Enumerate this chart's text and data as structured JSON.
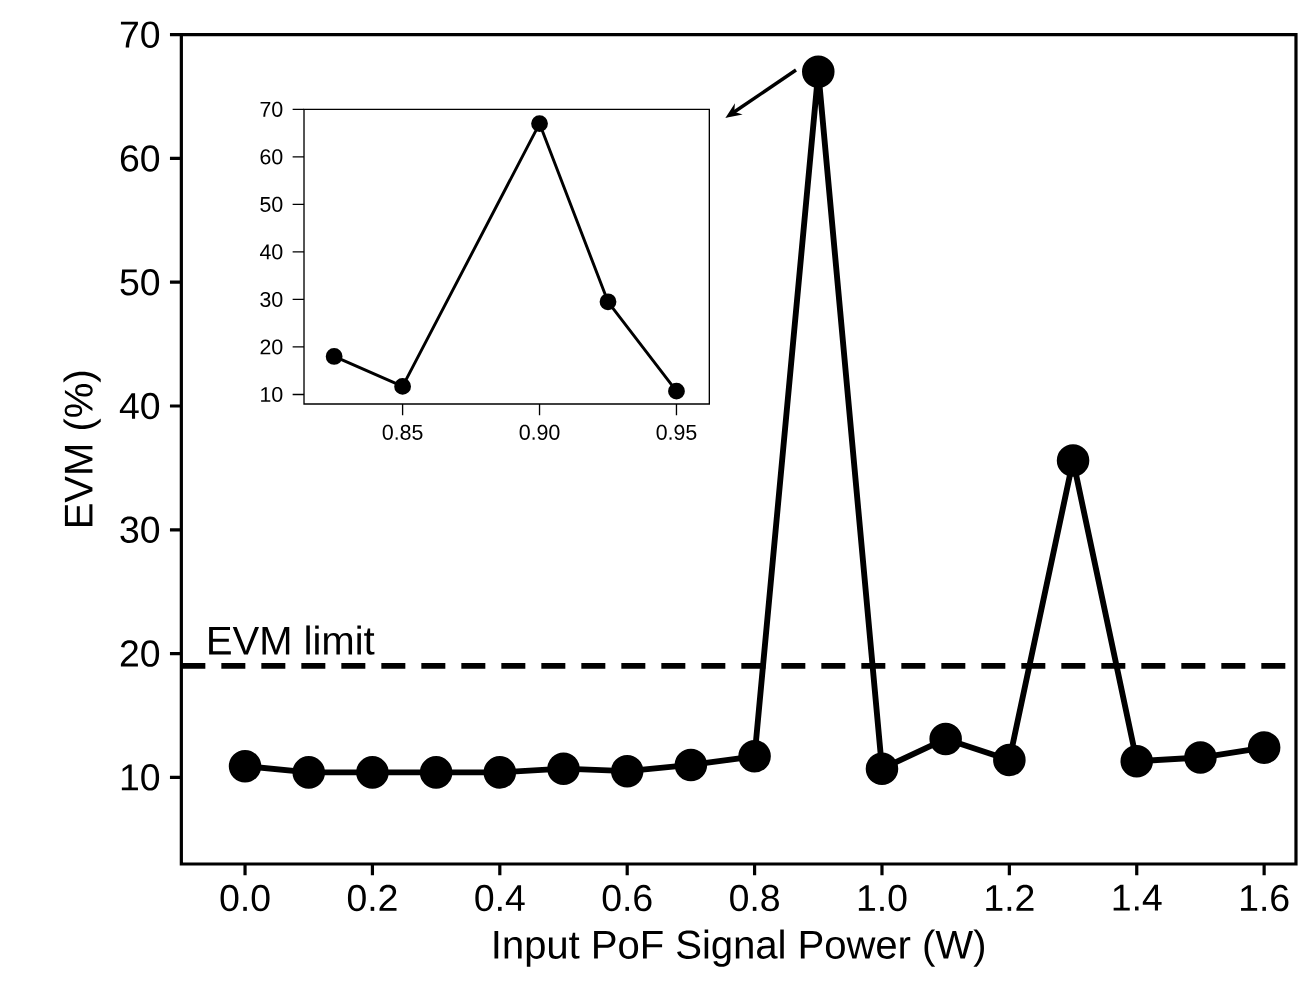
{
  "chart_data": [
    {
      "type": "line",
      "xlabel": "Input PoF Signal Power (W)",
      "ylabel": "EVM (%)",
      "x": [
        0.0,
        0.1,
        0.2,
        0.3,
        0.4,
        0.5,
        0.6,
        0.7,
        0.8,
        0.9,
        1.0,
        1.1,
        1.2,
        1.3,
        1.4,
        1.5,
        1.6
      ],
      "values": [
        10.9,
        10.4,
        10.4,
        10.4,
        10.4,
        10.7,
        10.5,
        11.0,
        11.7,
        67.0,
        10.7,
        13.1,
        11.4,
        35.6,
        11.3,
        11.6,
        12.4
      ],
      "color": "#000000",
      "marker": "circle",
      "line_style": "solid",
      "xlim": [
        -0.1,
        1.65
      ],
      "ylim": [
        3,
        70
      ],
      "xticks": [
        {
          "value": 0.0,
          "label": "0.0"
        },
        {
          "value": 0.2,
          "label": "0.2"
        },
        {
          "value": 0.4,
          "label": "0.4"
        },
        {
          "value": 0.6,
          "label": "0.6"
        },
        {
          "value": 0.8,
          "label": "0.8"
        },
        {
          "value": 1.0,
          "label": "1.0"
        },
        {
          "value": 1.2,
          "label": "1.2"
        },
        {
          "value": 1.4,
          "label": "1.4"
        },
        {
          "value": 1.6,
          "label": "1.6"
        }
      ],
      "yticks": [
        10,
        20,
        30,
        40,
        50,
        60,
        70
      ],
      "ref_lines": [
        {
          "axis": "y",
          "value": 19,
          "label": "EVM  limit",
          "color": "#000000",
          "line_style": "dashed"
        }
      ]
    },
    {
      "type": "line",
      "x": [
        0.825,
        0.85,
        0.9,
        0.925,
        0.95
      ],
      "values": [
        18,
        11.7,
        67,
        29.5,
        10.7
      ],
      "color": "#000000",
      "marker": "circle",
      "line_style": "solid",
      "xlim": [
        0.814,
        0.962
      ],
      "ylim": [
        8,
        70
      ],
      "xticks": [
        0.85,
        {
          "value": 0.9,
          "label": "0.90"
        },
        0.95
      ],
      "yticks": [
        10,
        20,
        30,
        40,
        50,
        60,
        70
      ]
    }
  ]
}
